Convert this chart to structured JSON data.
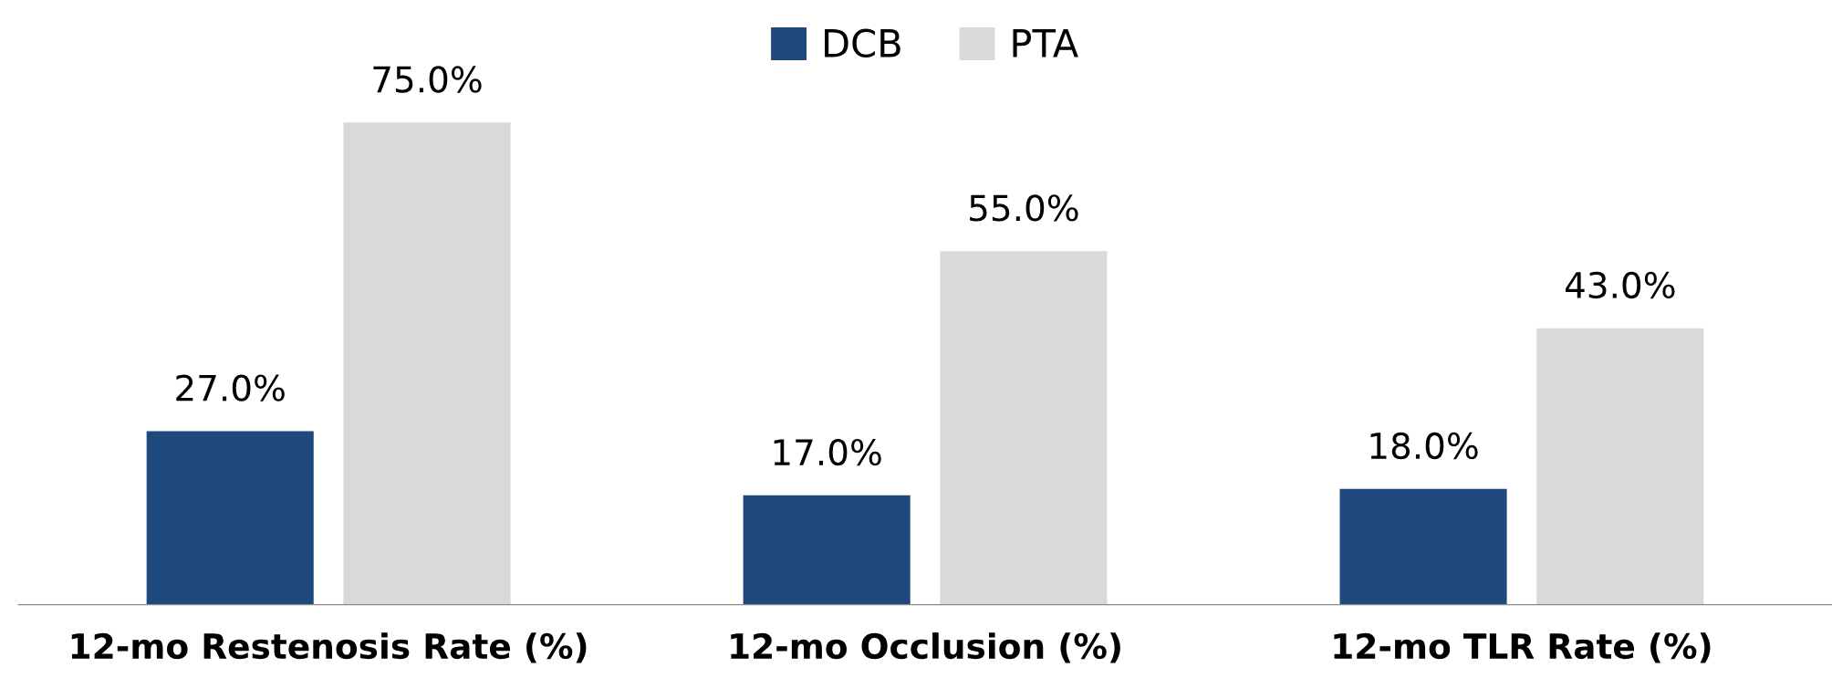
{
  "chart_data": {
    "type": "bar",
    "categories": [
      "12-mo Restenosis Rate (%)",
      "12-mo Occlusion (%)",
      "12-mo TLR Rate (%)"
    ],
    "series": [
      {
        "name": "DCB",
        "color": "#1f497d",
        "values": [
          27.0,
          17.0,
          18.0
        ],
        "value_labels": [
          "27.0%",
          "17.0%",
          "18.0%"
        ]
      },
      {
        "name": "PTA",
        "color": "#d9d9d9",
        "values": [
          75.0,
          55.0,
          43.0
        ],
        "value_labels": [
          "75.0%",
          "55.0%",
          "43.0%"
        ]
      }
    ],
    "legend": "top",
    "grid": false,
    "tick_labels": "x"
  }
}
